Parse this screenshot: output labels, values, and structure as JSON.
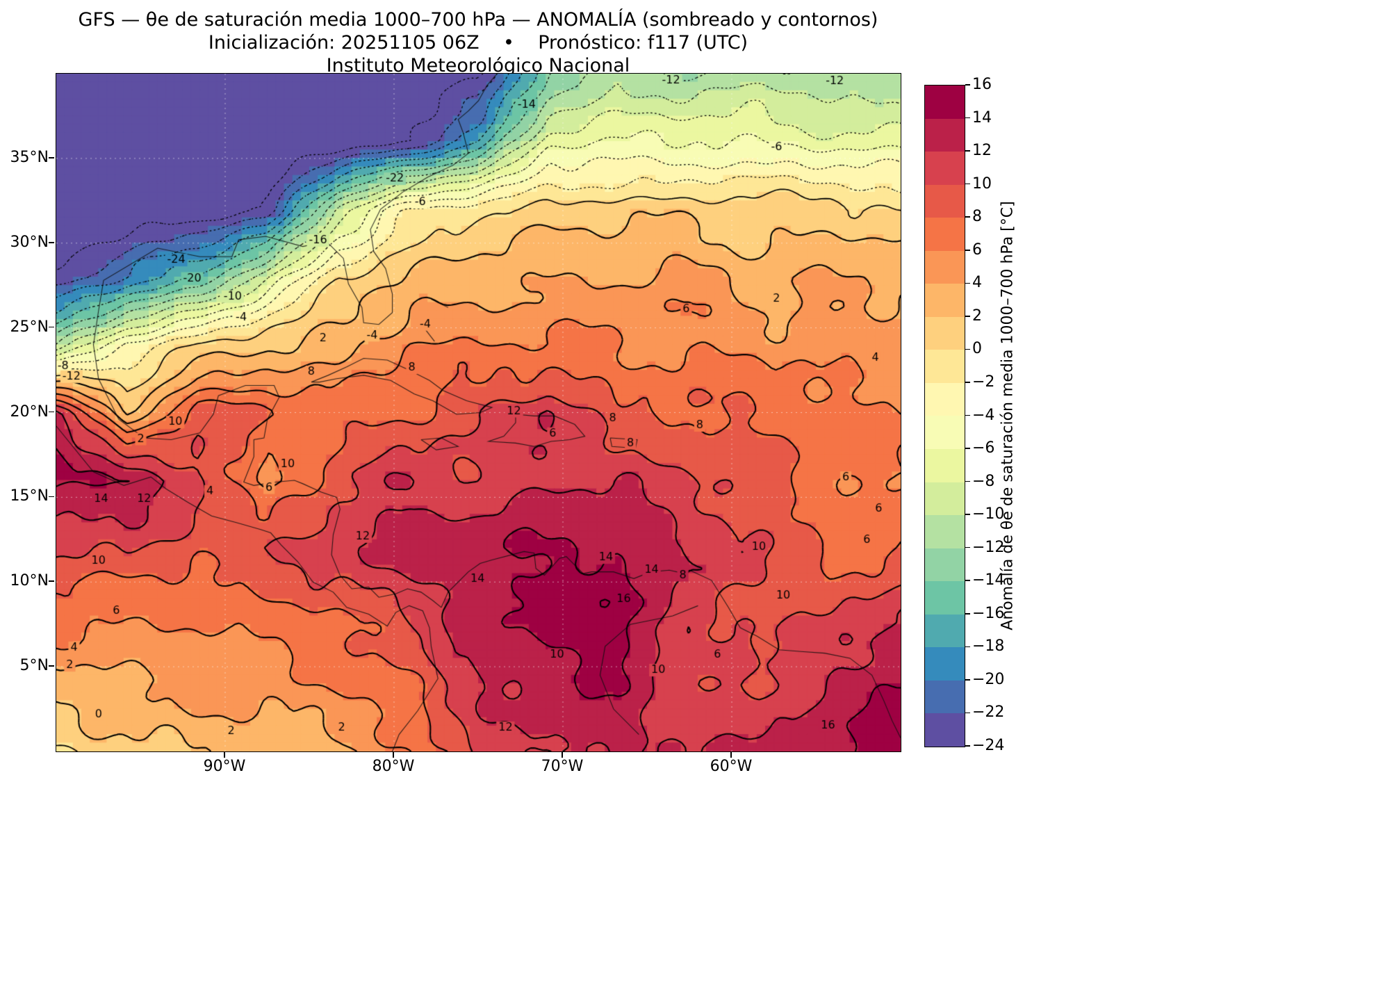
{
  "chart_data": {
    "type": "heatmap",
    "variant": "filled-contour-map",
    "title_lines": [
      "GFS — θe de saturación media 1000–700 hPa — ANOMALÍA (sombreado y contornos)",
      "Inicialización: 20251105 06Z    •    Pronóstico: f117 (UTC)",
      "Instituto Meteorológico Nacional"
    ],
    "lon_range": [
      -100,
      -50
    ],
    "lat_range": [
      0,
      40
    ],
    "xticks": [
      {
        "value": -90,
        "label": "90°W"
      },
      {
        "value": -80,
        "label": "80°W"
      },
      {
        "value": -70,
        "label": "70°W"
      },
      {
        "value": -60,
        "label": "60°W"
      }
    ],
    "yticks": [
      {
        "value": 35,
        "label": "35°N"
      },
      {
        "value": 30,
        "label": "30°N"
      },
      {
        "value": 25,
        "label": "25°N"
      },
      {
        "value": 20,
        "label": "20°N"
      },
      {
        "value": 15,
        "label": "15°N"
      },
      {
        "value": 10,
        "label": "10°N"
      },
      {
        "value": 5,
        "label": "5°N"
      }
    ],
    "units": "°C",
    "grid_lons": [
      -100,
      -95.83,
      -91.67,
      -87.5,
      -83.33,
      -79.17,
      -75,
      -70.83,
      -66.67,
      -62.5,
      -58.33,
      -54.17,
      -50
    ],
    "grid_lats": [
      40,
      36,
      32,
      28,
      24,
      20,
      16,
      12,
      8,
      4,
      0
    ],
    "values": [
      [
        -26,
        -26,
        -26,
        -26,
        -26,
        -26,
        -25,
        -14,
        -11,
        -12,
        -11,
        -12,
        -12
      ],
      [
        -26,
        -26,
        -26,
        -26,
        -26,
        -24,
        -18,
        -7,
        -6,
        -6,
        -6,
        -7,
        -7
      ],
      [
        -26,
        -26,
        -26,
        -24,
        -10,
        -2,
        0,
        1,
        1,
        1,
        1,
        1,
        0
      ],
      [
        -24,
        -20,
        -16,
        -8,
        0,
        2,
        3,
        4,
        4,
        5,
        3,
        4,
        4
      ],
      [
        -12,
        -4,
        0,
        2,
        3,
        6,
        6,
        6,
        6,
        6,
        5,
        5,
        5
      ],
      [
        13,
        2,
        9,
        8,
        7,
        8,
        10,
        12,
        8,
        8,
        8,
        7,
        6
      ],
      [
        15,
        14,
        11,
        5,
        9,
        12,
        10,
        12,
        12,
        10,
        9,
        7,
        6
      ],
      [
        10,
        10,
        9,
        10,
        12,
        13,
        14,
        14,
        14,
        12,
        10,
        7,
        8
      ],
      [
        7,
        6,
        6,
        7,
        8,
        10,
        13,
        15,
        16,
        10,
        10,
        10,
        12
      ],
      [
        3,
        4,
        5,
        5,
        6,
        8,
        12,
        13,
        14,
        10,
        10,
        12,
        14
      ],
      [
        0,
        1,
        2,
        3,
        3,
        6,
        10,
        13,
        12,
        12,
        12,
        14,
        15
      ]
    ],
    "contour_levels": {
      "min": -24,
      "max": 16,
      "step": 2,
      "negative_style": "dotted",
      "positive_style": "solid"
    },
    "contour_labels": [
      {
        "text": "-12",
        "x": 72.8,
        "y": 1.0
      },
      {
        "text": "-12",
        "x": 92.2,
        "y": 1.1
      },
      {
        "text": "-14",
        "x": 55.7,
        "y": 4.6
      },
      {
        "text": "-6",
        "x": 85.3,
        "y": 10.9
      },
      {
        "text": "-22",
        "x": 40.1,
        "y": 15.5
      },
      {
        "text": "-6",
        "x": 43.1,
        "y": 19.0
      },
      {
        "text": "-16",
        "x": 31.0,
        "y": 24.6
      },
      {
        "text": "-24",
        "x": 14.2,
        "y": 27.5
      },
      {
        "text": "-20",
        "x": 16.1,
        "y": 30.2
      },
      {
        "text": "-10",
        "x": 20.9,
        "y": 32.9
      },
      {
        "text": "-4",
        "x": 21.9,
        "y": 36.0
      },
      {
        "text": "2",
        "x": 31.6,
        "y": 39.1
      },
      {
        "text": "-4",
        "x": 37.4,
        "y": 38.6
      },
      {
        "text": "-4",
        "x": 43.7,
        "y": 37.0
      },
      {
        "text": "6",
        "x": 74.6,
        "y": 34.8
      },
      {
        "text": "2",
        "x": 85.3,
        "y": 33.2
      },
      {
        "text": "4",
        "x": 97.0,
        "y": 41.9
      },
      {
        "text": "8",
        "x": 42.1,
        "y": 43.4
      },
      {
        "text": "-8",
        "x": 0.8,
        "y": 43.2
      },
      {
        "text": "-12",
        "x": 1.8,
        "y": 44.7
      },
      {
        "text": "10",
        "x": 14.1,
        "y": 51.4
      },
      {
        "text": "8",
        "x": 30.2,
        "y": 44.0
      },
      {
        "text": "12",
        "x": 54.2,
        "y": 49.8
      },
      {
        "text": "8",
        "x": 65.9,
        "y": 50.9
      },
      {
        "text": "8",
        "x": 68.0,
        "y": 54.5
      },
      {
        "text": "8",
        "x": 76.2,
        "y": 51.9
      },
      {
        "text": "6",
        "x": 58.8,
        "y": 53.1
      },
      {
        "text": "2",
        "x": 10.0,
        "y": 53.9
      },
      {
        "text": "12",
        "x": 10.4,
        "y": 62.8
      },
      {
        "text": "14",
        "x": 5.3,
        "y": 62.8
      },
      {
        "text": "10",
        "x": 27.4,
        "y": 57.6
      },
      {
        "text": "6",
        "x": 25.2,
        "y": 61.1
      },
      {
        "text": "4",
        "x": 18.2,
        "y": 61.6
      },
      {
        "text": "12",
        "x": 36.3,
        "y": 68.3
      },
      {
        "text": "10",
        "x": 5.0,
        "y": 71.9
      },
      {
        "text": "14",
        "x": 49.9,
        "y": 74.5
      },
      {
        "text": "14",
        "x": 65.1,
        "y": 71.4
      },
      {
        "text": "14",
        "x": 70.5,
        "y": 73.2
      },
      {
        "text": "10",
        "x": 83.2,
        "y": 69.8
      },
      {
        "text": "16",
        "x": 67.2,
        "y": 77.5
      },
      {
        "text": "6",
        "x": 7.1,
        "y": 79.3
      },
      {
        "text": "10",
        "x": 86.1,
        "y": 77.0
      },
      {
        "text": "6",
        "x": 93.5,
        "y": 59.6
      },
      {
        "text": "6",
        "x": 96.0,
        "y": 68.8
      },
      {
        "text": "6",
        "x": 97.4,
        "y": 64.2
      },
      {
        "text": "8",
        "x": 74.2,
        "y": 74.0
      },
      {
        "text": "6",
        "x": 78.3,
        "y": 85.7
      },
      {
        "text": "4",
        "x": 2.1,
        "y": 84.7
      },
      {
        "text": "2",
        "x": 1.6,
        "y": 87.3
      },
      {
        "text": "0",
        "x": 5.0,
        "y": 94.5
      },
      {
        "text": "2",
        "x": 20.7,
        "y": 97.0
      },
      {
        "text": "2",
        "x": 33.8,
        "y": 96.5
      },
      {
        "text": "12",
        "x": 53.2,
        "y": 96.5
      },
      {
        "text": "10",
        "x": 59.3,
        "y": 85.7
      },
      {
        "text": "10",
        "x": 71.3,
        "y": 88.0
      },
      {
        "text": "16",
        "x": 91.4,
        "y": 96.2
      }
    ],
    "colorbar": {
      "label": "Anomalía de θe de saturación media 1000–700 hPa [°C]",
      "vmin": -24,
      "vmax": 16,
      "ticks": [
        16,
        14,
        12,
        10,
        8,
        6,
        4,
        2,
        0,
        -2,
        -4,
        -6,
        -8,
        -10,
        -12,
        -14,
        -16,
        -18,
        -20,
        -22,
        -24
      ],
      "colors_bottom_to_top": [
        "#5e4fa2",
        "#476db0",
        "#358bbc",
        "#50aaaf",
        "#6dc5a5",
        "#92d3a5",
        "#b4e1a2",
        "#d3ed9c",
        "#ebf7a0",
        "#f8fcb5",
        "#fff7b1",
        "#fee796",
        "#fed07e",
        "#fdb668",
        "#fa9656",
        "#f57446",
        "#e75948",
        "#d7414e",
        "#bb2149",
        "#9e0142"
      ]
    }
  }
}
